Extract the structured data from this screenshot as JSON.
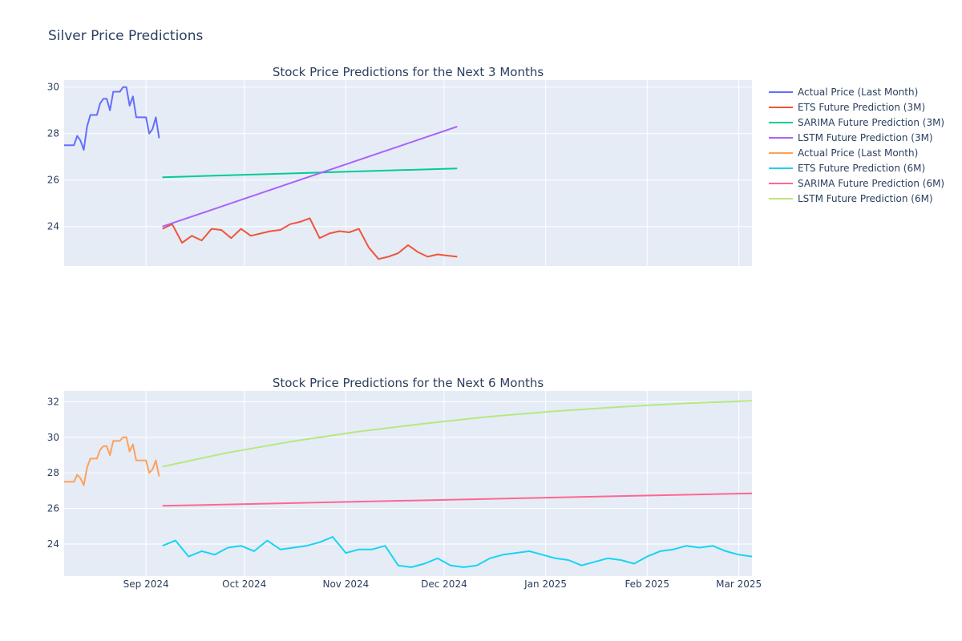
{
  "figure_title": "Silver Price Predictions",
  "chart_data": [
    {
      "type": "line",
      "title": "Stock Price Predictions for the Next 3 Months",
      "xlabel": "",
      "ylabel": "",
      "x_ticks": [
        "Sep 2024",
        "Oct 2024",
        "Nov 2024",
        "Dec 2024",
        "Jan 2025",
        "Feb 2025",
        "Mar 2025"
      ],
      "x_ticks_shown": false,
      "y_ticks": [
        "24",
        "26",
        "28",
        "30"
      ],
      "xlim": [
        "2024-08-07",
        "2025-03-05"
      ],
      "ylim": [
        22.3,
        30.3
      ],
      "grid": true,
      "legend_placement": "right",
      "series": [
        {
          "name": "Actual Price (Last Month)",
          "color": "#636efa",
          "x": [
            "2024-08-07",
            "2024-08-08",
            "2024-08-09",
            "2024-08-10",
            "2024-08-11",
            "2024-08-12",
            "2024-08-13",
            "2024-08-14",
            "2024-08-15",
            "2024-08-16",
            "2024-08-17",
            "2024-08-18",
            "2024-08-19",
            "2024-08-20",
            "2024-08-21",
            "2024-08-22",
            "2024-08-23",
            "2024-08-24",
            "2024-08-25",
            "2024-08-26",
            "2024-08-27",
            "2024-08-28",
            "2024-08-29",
            "2024-08-30",
            "2024-08-31",
            "2024-09-01",
            "2024-09-02",
            "2024-09-03",
            "2024-09-04",
            "2024-09-05"
          ],
          "y": [
            27.5,
            27.5,
            27.5,
            27.5,
            27.9,
            27.7,
            27.3,
            28.3,
            28.8,
            28.8,
            28.8,
            29.3,
            29.5,
            29.5,
            29.0,
            29.8,
            29.8,
            29.8,
            30.0,
            30.0,
            29.2,
            29.6,
            28.7,
            28.7,
            28.7,
            28.7,
            28.0,
            28.2,
            28.7,
            27.8
          ]
        },
        {
          "name": "ETS Future Prediction (3M)",
          "color": "#ef553b",
          "x": [
            "2024-09-06",
            "2024-09-09",
            "2024-09-12",
            "2024-09-15",
            "2024-09-18",
            "2024-09-21",
            "2024-09-24",
            "2024-09-27",
            "2024-09-30",
            "2024-10-03",
            "2024-10-06",
            "2024-10-09",
            "2024-10-12",
            "2024-10-15",
            "2024-10-18",
            "2024-10-21",
            "2024-10-24",
            "2024-10-27",
            "2024-10-30",
            "2024-11-02",
            "2024-11-05",
            "2024-11-08",
            "2024-11-11",
            "2024-11-14",
            "2024-11-17",
            "2024-11-20",
            "2024-11-23",
            "2024-11-26",
            "2024-11-29",
            "2024-12-02",
            "2024-12-05"
          ],
          "y": [
            23.9,
            24.1,
            23.3,
            23.6,
            23.4,
            23.9,
            23.85,
            23.5,
            23.9,
            23.6,
            23.7,
            23.8,
            23.85,
            24.1,
            24.2,
            24.35,
            23.5,
            23.7,
            23.8,
            23.75,
            23.9,
            23.1,
            22.6,
            22.7,
            22.85,
            23.2,
            22.9,
            22.7,
            22.8,
            22.75,
            22.7
          ]
        },
        {
          "name": "SARIMA Future Prediction (3M)",
          "color": "#00cc96",
          "x": [
            "2024-09-06",
            "2024-12-05"
          ],
          "y": [
            26.12,
            26.5
          ]
        },
        {
          "name": "LSTM Future Prediction (3M)",
          "color": "#ab63fa",
          "x": [
            "2024-09-06",
            "2024-12-05"
          ],
          "y": [
            24.0,
            28.3
          ]
        }
      ]
    },
    {
      "type": "line",
      "title": "Stock Price Predictions for the Next 6 Months",
      "xlabel": "",
      "ylabel": "",
      "x_ticks": [
        "Sep 2024",
        "Oct 2024",
        "Nov 2024",
        "Dec 2024",
        "Jan 2025",
        "Feb 2025",
        "Mar 2025"
      ],
      "y_ticks": [
        "24",
        "26",
        "28",
        "30",
        "32"
      ],
      "xlim": [
        "2024-08-07",
        "2025-03-05"
      ],
      "ylim": [
        22.2,
        32.6
      ],
      "grid": true,
      "legend_placement": "right",
      "series": [
        {
          "name": "Actual Price (Last Month)",
          "color": "#ffa15a",
          "x": [
            "2024-08-07",
            "2024-08-08",
            "2024-08-09",
            "2024-08-10",
            "2024-08-11",
            "2024-08-12",
            "2024-08-13",
            "2024-08-14",
            "2024-08-15",
            "2024-08-16",
            "2024-08-17",
            "2024-08-18",
            "2024-08-19",
            "2024-08-20",
            "2024-08-21",
            "2024-08-22",
            "2024-08-23",
            "2024-08-24",
            "2024-08-25",
            "2024-08-26",
            "2024-08-27",
            "2024-08-28",
            "2024-08-29",
            "2024-08-30",
            "2024-08-31",
            "2024-09-01",
            "2024-09-02",
            "2024-09-03",
            "2024-09-04",
            "2024-09-05"
          ],
          "y": [
            27.5,
            27.5,
            27.5,
            27.5,
            27.9,
            27.7,
            27.3,
            28.3,
            28.8,
            28.8,
            28.8,
            29.3,
            29.5,
            29.5,
            29.0,
            29.8,
            29.8,
            29.8,
            30.0,
            30.0,
            29.2,
            29.6,
            28.7,
            28.7,
            28.7,
            28.7,
            28.0,
            28.2,
            28.7,
            27.8
          ]
        },
        {
          "name": "ETS Future Prediction (6M)",
          "color": "#19d3f3",
          "x": [
            "2024-09-06",
            "2024-09-10",
            "2024-09-14",
            "2024-09-18",
            "2024-09-22",
            "2024-09-26",
            "2024-09-30",
            "2024-10-04",
            "2024-10-08",
            "2024-10-12",
            "2024-10-16",
            "2024-10-20",
            "2024-10-24",
            "2024-10-28",
            "2024-11-01",
            "2024-11-05",
            "2024-11-09",
            "2024-11-13",
            "2024-11-17",
            "2024-11-21",
            "2024-11-25",
            "2024-11-29",
            "2024-12-03",
            "2024-12-07",
            "2024-12-11",
            "2024-12-15",
            "2024-12-19",
            "2024-12-23",
            "2024-12-27",
            "2024-12-31",
            "2025-01-04",
            "2025-01-08",
            "2025-01-12",
            "2025-01-16",
            "2025-01-20",
            "2025-01-24",
            "2025-01-28",
            "2025-02-01",
            "2025-02-05",
            "2025-02-09",
            "2025-02-13",
            "2025-02-17",
            "2025-02-21",
            "2025-02-25",
            "2025-03-01",
            "2025-03-05"
          ],
          "y": [
            23.9,
            24.2,
            23.3,
            23.6,
            23.4,
            23.8,
            23.9,
            23.6,
            24.2,
            23.7,
            23.8,
            23.9,
            24.1,
            24.4,
            23.5,
            23.7,
            23.7,
            23.9,
            22.8,
            22.7,
            22.9,
            23.2,
            22.8,
            22.7,
            22.8,
            23.2,
            23.4,
            23.5,
            23.6,
            23.4,
            23.2,
            23.1,
            22.8,
            23.0,
            23.2,
            23.1,
            22.9,
            23.3,
            23.6,
            23.7,
            23.9,
            23.8,
            23.9,
            23.6,
            23.4,
            23.3
          ]
        },
        {
          "name": "SARIMA Future Prediction (6M)",
          "color": "#ff6692",
          "x": [
            "2024-09-06",
            "2025-03-05"
          ],
          "y": [
            26.15,
            26.85
          ]
        },
        {
          "name": "LSTM Future Prediction (6M)",
          "color": "#b6e880",
          "x": [
            "2024-09-06",
            "2024-09-25",
            "2024-10-15",
            "2024-11-04",
            "2024-11-24",
            "2024-12-14",
            "2025-01-03",
            "2025-01-23",
            "2025-02-12",
            "2025-03-05"
          ],
          "y": [
            28.35,
            29.1,
            29.75,
            30.3,
            30.75,
            31.15,
            31.45,
            31.7,
            31.9,
            32.05
          ]
        }
      ]
    }
  ]
}
